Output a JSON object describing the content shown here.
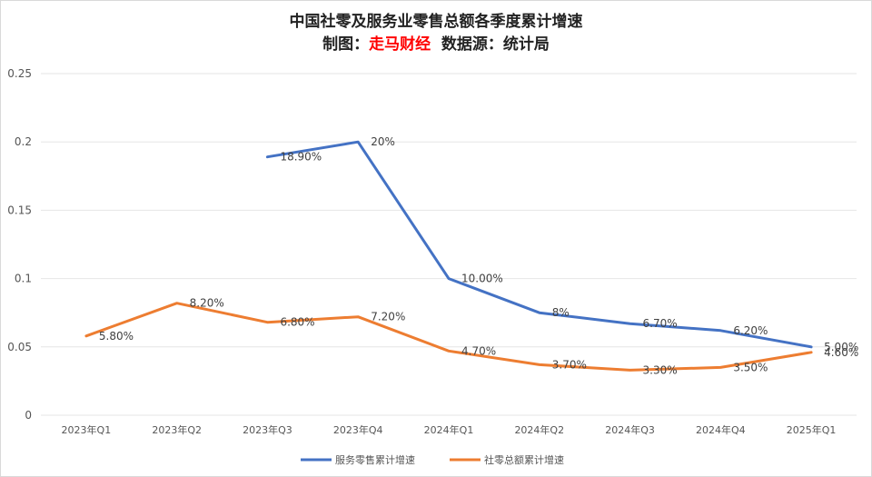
{
  "chart_data": {
    "type": "line",
    "title": "中国社零及服务业零售总额各季度累计增速",
    "subtitle": {
      "prefix": "制图：",
      "brand": "走马财经",
      "suffix": "  数据源：统计局"
    },
    "categories": [
      "2023年Q1",
      "2023年Q2",
      "2023年Q3",
      "2023年Q4",
      "2024年Q1",
      "2024年Q2",
      "2024年Q3",
      "2024年Q4",
      "2025年Q1"
    ],
    "y_ticks": [
      "0",
      "0.05",
      "0.1",
      "0.15",
      "0.2",
      "0.25"
    ],
    "ylim": [
      0,
      0.25
    ],
    "grid": true,
    "legend_position": "bottom",
    "series": [
      {
        "name": "服务零售累计增速",
        "color": "#4472c4",
        "values": [
          null,
          null,
          0.189,
          0.2,
          0.1,
          0.075,
          0.067,
          0.062,
          0.05
        ],
        "labels": [
          null,
          null,
          "18.90%",
          "20%",
          "10.00%",
          "8%",
          "6.70%",
          "6.20%",
          "5.00%"
        ]
      },
      {
        "name": "社零总额累计增速",
        "color": "#ed7d31",
        "values": [
          0.058,
          0.082,
          0.068,
          0.072,
          0.047,
          0.037,
          0.033,
          0.035,
          0.046
        ],
        "labels": [
          "5.80%",
          "8.20%",
          "6.80%",
          "7.20%",
          "4.70%",
          "3.70%",
          "3.30%",
          "3.50%",
          "4.60%"
        ]
      }
    ]
  }
}
